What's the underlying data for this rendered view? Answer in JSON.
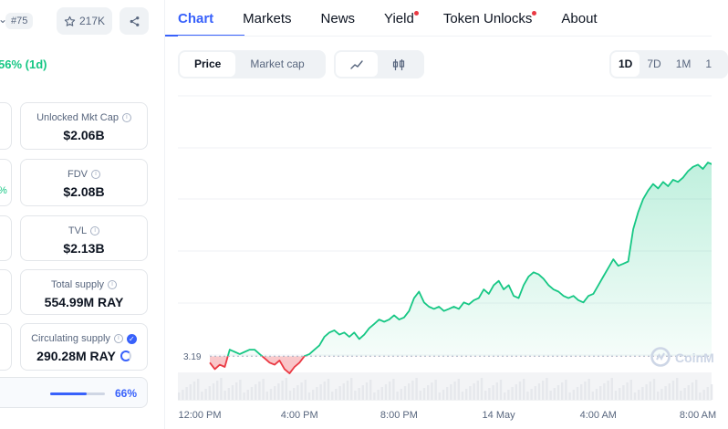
{
  "coin": {
    "rank": "#75",
    "watchlist_count": "217K",
    "price_change": "56% (1d)",
    "partial_pct": "%"
  },
  "stats": [
    {
      "label": "Unlocked Mkt Cap",
      "value": "$2.06B"
    },
    {
      "label": "FDV",
      "value": "$2.08B"
    },
    {
      "label": "TVL",
      "value": "$2.13B"
    },
    {
      "label": "Total supply",
      "value": "554.99M RAY"
    },
    {
      "label": "Circulating supply",
      "value": "290.28M RAY"
    }
  ],
  "supply_progress": {
    "percent_label": "66%",
    "fraction": 0.66
  },
  "tabs": [
    {
      "label": "Chart",
      "active": true,
      "dot": false
    },
    {
      "label": "Markets",
      "active": false,
      "dot": false
    },
    {
      "label": "News",
      "active": false,
      "dot": false
    },
    {
      "label": "Yield",
      "active": false,
      "dot": true
    },
    {
      "label": "Token Unlocks",
      "active": false,
      "dot": true
    },
    {
      "label": "About",
      "active": false,
      "dot": false
    }
  ],
  "chart_controls": {
    "metric_options": [
      "Price",
      "Market cap"
    ],
    "selected_metric": "Price",
    "view_icons": [
      "line-chart-icon",
      "candlestick-icon"
    ],
    "ranges": [
      "1D",
      "7D",
      "1M",
      "1"
    ],
    "selected_range": "1D"
  },
  "colors": {
    "accent": "#3861fb",
    "up": "#16c784",
    "down": "#ea3943"
  },
  "chart_data": {
    "type": "area",
    "baseline_label": "3.19",
    "baseline_value": 3.19,
    "watermark": "CoinM",
    "x_tick_labels": [
      "12:00 PM",
      "4:00 PM",
      "8:00 PM",
      "14 May",
      "4:00 AM",
      "8:00 AM"
    ],
    "x_tick_hours": [
      0,
      4,
      8,
      12,
      16,
      20
    ],
    "ylim": [
      3.0,
      4.4
    ],
    "series": [
      {
        "hours": [
          0,
          0.2,
          0.4,
          0.6,
          0.8,
          1.0,
          1.2,
          1.4,
          1.6,
          1.8,
          2.0,
          2.2,
          2.4,
          2.6,
          2.8,
          3.0,
          3.2,
          3.4,
          3.6,
          3.8,
          4.0,
          4.2,
          4.4,
          4.6,
          4.8,
          5.0,
          5.2,
          5.4,
          5.6,
          5.8,
          6.0,
          6.2,
          6.4,
          6.6,
          6.8,
          7.0,
          7.2,
          7.4,
          7.6,
          7.8,
          8.0,
          8.2,
          8.4,
          8.6,
          8.8,
          9.0,
          9.2,
          9.4,
          9.6,
          9.8,
          10.0,
          10.2,
          10.4,
          10.6,
          10.8,
          11.0,
          11.2,
          11.4,
          11.6,
          11.8,
          12.0,
          12.2,
          12.4,
          12.6,
          12.8,
          13.0,
          13.2,
          13.4,
          13.6,
          13.8,
          14.0,
          14.2,
          14.4,
          14.6,
          14.8,
          15.0,
          15.2,
          15.4,
          15.6,
          15.8,
          16.0,
          16.2,
          16.4,
          16.6,
          16.8,
          17.0,
          17.2,
          17.4,
          17.6,
          17.8,
          18.0,
          18.2,
          18.4,
          18.6,
          18.8,
          19.0,
          19.2,
          19.4,
          19.6,
          19.8,
          20.0,
          20.2,
          20.4,
          20.6,
          20.8,
          21.0
        ],
        "values": [
          3.16,
          3.13,
          3.15,
          3.14,
          3.22,
          3.21,
          3.2,
          3.21,
          3.22,
          3.22,
          3.2,
          3.18,
          3.16,
          3.15,
          3.17,
          3.13,
          3.11,
          3.14,
          3.16,
          3.19,
          3.2,
          3.22,
          3.24,
          3.28,
          3.3,
          3.31,
          3.29,
          3.3,
          3.28,
          3.3,
          3.27,
          3.29,
          3.32,
          3.34,
          3.36,
          3.35,
          3.36,
          3.38,
          3.36,
          3.37,
          3.4,
          3.46,
          3.49,
          3.44,
          3.42,
          3.41,
          3.42,
          3.4,
          3.41,
          3.42,
          3.41,
          3.44,
          3.43,
          3.45,
          3.46,
          3.5,
          3.48,
          3.52,
          3.54,
          3.5,
          3.52,
          3.47,
          3.46,
          3.52,
          3.56,
          3.58,
          3.57,
          3.55,
          3.52,
          3.5,
          3.49,
          3.47,
          3.46,
          3.47,
          3.45,
          3.44,
          3.47,
          3.48,
          3.52,
          3.56,
          3.6,
          3.64,
          3.61,
          3.62,
          3.63,
          3.78,
          3.86,
          3.92,
          3.96,
          3.99,
          3.97,
          4.0,
          3.98,
          4.01,
          4.0,
          4.02,
          4.05,
          4.07,
          4.08,
          4.06,
          4.09,
          4.08,
          4.07,
          4.1,
          4.12,
          4.09
        ]
      }
    ]
  }
}
